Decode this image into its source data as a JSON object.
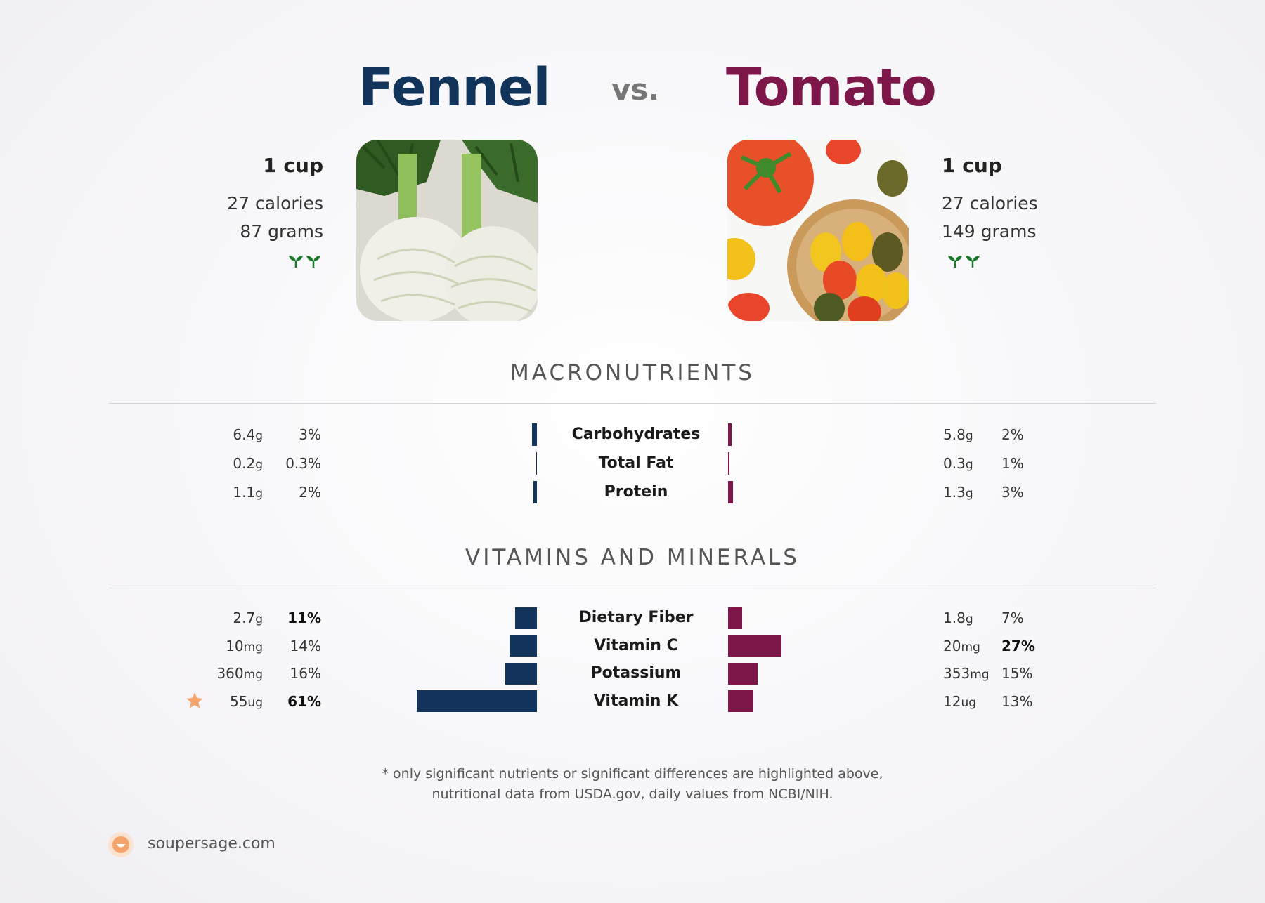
{
  "header": {
    "left_title": "Fennel",
    "vs": "vs.",
    "right_title": "Tomato"
  },
  "left_food": {
    "name": "Fennel",
    "serving": "1 cup",
    "calories": "27 calories",
    "grams": "87 grams",
    "icons": [
      "sprout-icon",
      "sprout-icon"
    ],
    "color": "#13345a"
  },
  "right_food": {
    "name": "Tomato",
    "serving": "1 cup",
    "calories": "27 calories",
    "grams": "149 grams",
    "icons": [
      "sprout-icon",
      "sprout-icon"
    ],
    "color": "#7e1749"
  },
  "sections": {
    "macro_title": "MACRONUTRIENTS",
    "vitamins_title": "VITAMINS AND MINERALS"
  },
  "chart_data": {
    "type": "bar",
    "macronutrients": [
      {
        "name": "Carbohydrates",
        "left": {
          "amount": "6.4",
          "unit": "g",
          "pct": "3%",
          "dv": 3
        },
        "right": {
          "amount": "5.8",
          "unit": "g",
          "pct": "2%",
          "dv": 2
        }
      },
      {
        "name": "Total Fat",
        "left": {
          "amount": "0.2",
          "unit": "g",
          "pct": "0.3%",
          "dv": 0.3
        },
        "right": {
          "amount": "0.3",
          "unit": "g",
          "pct": "1%",
          "dv": 1
        }
      },
      {
        "name": "Protein",
        "left": {
          "amount": "1.1",
          "unit": "g",
          "pct": "2%",
          "dv": 2
        },
        "right": {
          "amount": "1.3",
          "unit": "g",
          "pct": "3%",
          "dv": 3
        }
      }
    ],
    "vitamins": [
      {
        "name": "Dietary Fiber",
        "left": {
          "amount": "2.7",
          "unit": "g",
          "pct": "11%",
          "dv": 11,
          "bold": true
        },
        "right": {
          "amount": "1.8",
          "unit": "g",
          "pct": "7%",
          "dv": 7,
          "bold": false
        }
      },
      {
        "name": "Vitamin C",
        "left": {
          "amount": "10",
          "unit": "mg",
          "pct": "14%",
          "dv": 14,
          "bold": false
        },
        "right": {
          "amount": "20",
          "unit": "mg",
          "pct": "27%",
          "dv": 27,
          "bold": true
        }
      },
      {
        "name": "Potassium",
        "left": {
          "amount": "360",
          "unit": "mg",
          "pct": "16%",
          "dv": 16,
          "bold": false
        },
        "right": {
          "amount": "353",
          "unit": "mg",
          "pct": "15%",
          "dv": 15,
          "bold": false
        }
      },
      {
        "name": "Vitamin K",
        "left": {
          "amount": "55",
          "unit": "ug",
          "pct": "61%",
          "dv": 61,
          "bold": true,
          "star": true
        },
        "right": {
          "amount": "12",
          "unit": "ug",
          "pct": "13%",
          "dv": 13,
          "bold": false
        }
      }
    ]
  },
  "footnote": {
    "line1": "* only significant nutrients or significant differences are highlighted above,",
    "line2": "nutritional data from USDA.gov, daily values from NCBI/NIH."
  },
  "brand": {
    "text": "soupersage.com",
    "icon": "soupersage-logo-icon",
    "color": "#f4a46a"
  }
}
